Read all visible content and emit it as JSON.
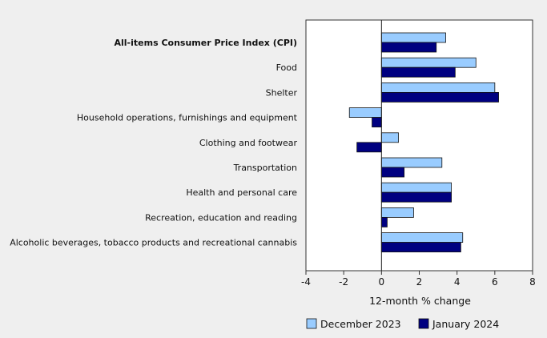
{
  "chart_data": {
    "type": "bar",
    "orientation": "horizontal",
    "categories": [
      "All-items Consumer Price Index (CPI)",
      "Food",
      "Shelter",
      "Household operations, furnishings and equipment",
      "Clothing and footwear",
      "Transportation",
      "Health and personal care",
      "Recreation, education and reading",
      "Alcoholic beverages, tobacco products and recreational cannabis"
    ],
    "bold_categories": [
      "All-items Consumer Price Index (CPI)"
    ],
    "series": [
      {
        "name": "December 2023",
        "color": "#99ccff",
        "values": [
          3.4,
          5.0,
          6.0,
          -1.7,
          0.9,
          3.2,
          3.7,
          1.7,
          4.3
        ]
      },
      {
        "name": "January 2024",
        "color": "#000080",
        "values": [
          2.9,
          3.9,
          6.2,
          -0.5,
          -1.3,
          1.2,
          3.7,
          0.3,
          4.2
        ]
      }
    ],
    "xlabel": "12-month % change",
    "xlim": [
      -4,
      8
    ],
    "xticks": [
      -4,
      -2,
      0,
      2,
      4,
      6,
      8
    ],
    "legend_position": "bottom",
    "grid": false
  }
}
